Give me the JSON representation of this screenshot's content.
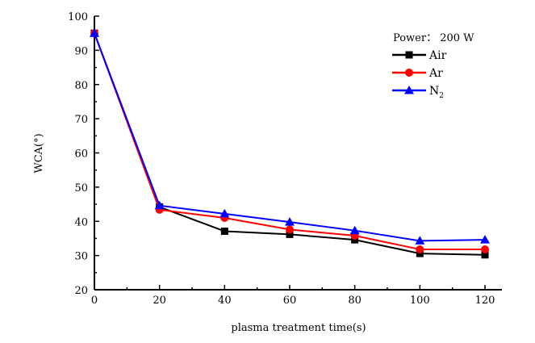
{
  "chart_data": {
    "type": "line",
    "title": "",
    "xlabel": "plasma treatment time(s)",
    "ylabel": "WCA(°)",
    "x": [
      0,
      20,
      40,
      60,
      80,
      100,
      120
    ],
    "xlim": [
      0,
      125
    ],
    "ylim": [
      20,
      100
    ],
    "xticks": [
      0,
      20,
      40,
      60,
      80,
      100,
      120
    ],
    "yticks": [
      20,
      30,
      40,
      50,
      60,
      70,
      80,
      90,
      100
    ],
    "grid": false,
    "legend_title": "Power： 200 W",
    "legend_placement": "top-right",
    "series": [
      {
        "name": "Air",
        "color": "#000000",
        "marker": "square",
        "values": [
          95,
          44.2,
          37.1,
          36.2,
          34.6,
          30.6,
          30.2
        ]
      },
      {
        "name": "Ar",
        "color": "#ff0000",
        "marker": "circle",
        "values": [
          95,
          43.4,
          41.0,
          37.6,
          35.8,
          31.8,
          31.8
        ]
      },
      {
        "name": "N2",
        "label_main": "N",
        "label_sub": "2",
        "color": "#0000ff",
        "marker": "triangle",
        "values": [
          95,
          44.6,
          42.2,
          39.8,
          37.3,
          34.3,
          34.6
        ]
      }
    ]
  }
}
